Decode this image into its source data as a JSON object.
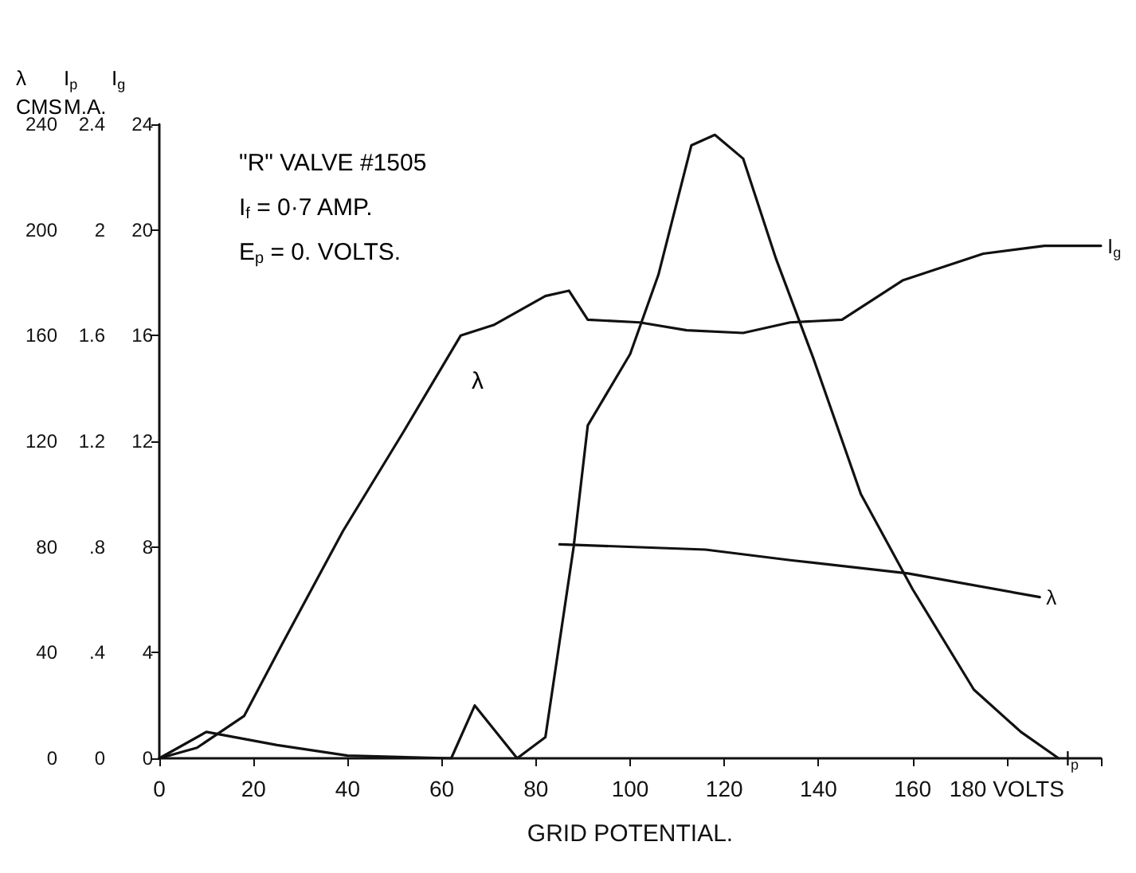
{
  "chart_data": {
    "type": "line",
    "xlabel": "GRID POTENTIAL.",
    "ylabel": "λ\nCMS",
    "y2label": "I$_{p}$\nM.A.",
    "y3label": "I$_{g}$",
    "xlim": [
      0,
      200
    ],
    "xticks": [
      0,
      20,
      40,
      60,
      80,
      100,
      120,
      140,
      160,
      {
        "value": 180,
        "label": "180 VOLTS"
      },
      {
        "value": 200,
        "label": null
      }
    ],
    "ylim": [
      0,
      240
    ],
    "yticks": [
      0,
      40,
      80,
      120,
      160,
      200,
      240
    ],
    "y2lim": [
      0,
      2.4
    ],
    "y2ticks": [
      0,
      {
        "value": 0.4,
        "label": ".4"
      },
      {
        "value": 0.8,
        "label": ".8"
      },
      1.2,
      1.6,
      2.0,
      2.4
    ],
    "y3lim": [
      0,
      24
    ],
    "y3ticks": [
      0,
      4,
      8,
      12,
      16,
      20,
      24
    ],
    "grid": false,
    "legend": false,
    "marker": "none",
    "line_style": "solid",
    "annotations": [
      "\"R\" VALVE #1505",
      "I$_{f}$ = 0·7 AMP.",
      "E$_{p}$ = 0. VOLTS.",
      "λ"
    ],
    "series": [
      {
        "name": "I$_{p}$",
        "color": "#111111",
        "axis": "y2",
        "x": [
          0,
          10,
          25,
          40,
          62,
          67,
          76,
          82,
          88,
          91,
          100,
          106,
          113,
          118,
          124,
          131,
          139,
          149,
          160,
          173,
          183,
          191
        ],
        "values": [
          0,
          0.1,
          0.05,
          0.01,
          0,
          0.2,
          0,
          0.08,
          0.8,
          1.26,
          1.53,
          1.83,
          2.32,
          2.36,
          2.27,
          1.89,
          1.51,
          1.0,
          0.64,
          0.26,
          0.1,
          0
        ]
      },
      {
        "name": "I$_{g}$",
        "color": "#111111",
        "axis": "y3",
        "x": [
          0,
          8,
          18,
          26,
          39,
          52,
          64,
          71,
          82,
          87,
          91,
          102,
          112,
          124,
          134,
          145,
          158,
          175,
          188,
          200
        ],
        "values": [
          0,
          0.4,
          1.6,
          4.3,
          8.6,
          12.4,
          16,
          16.4,
          17.5,
          17.7,
          16.6,
          16.5,
          16.2,
          16.1,
          16.5,
          16.6,
          18.1,
          19.1,
          19.4,
          19.4
        ]
      },
      {
        "name": "λ",
        "color": "#111111",
        "axis": "y",
        "x": [
          85,
          116,
          134,
          159,
          187
        ],
        "values": [
          81,
          79,
          75,
          70,
          61
        ]
      }
    ]
  }
}
